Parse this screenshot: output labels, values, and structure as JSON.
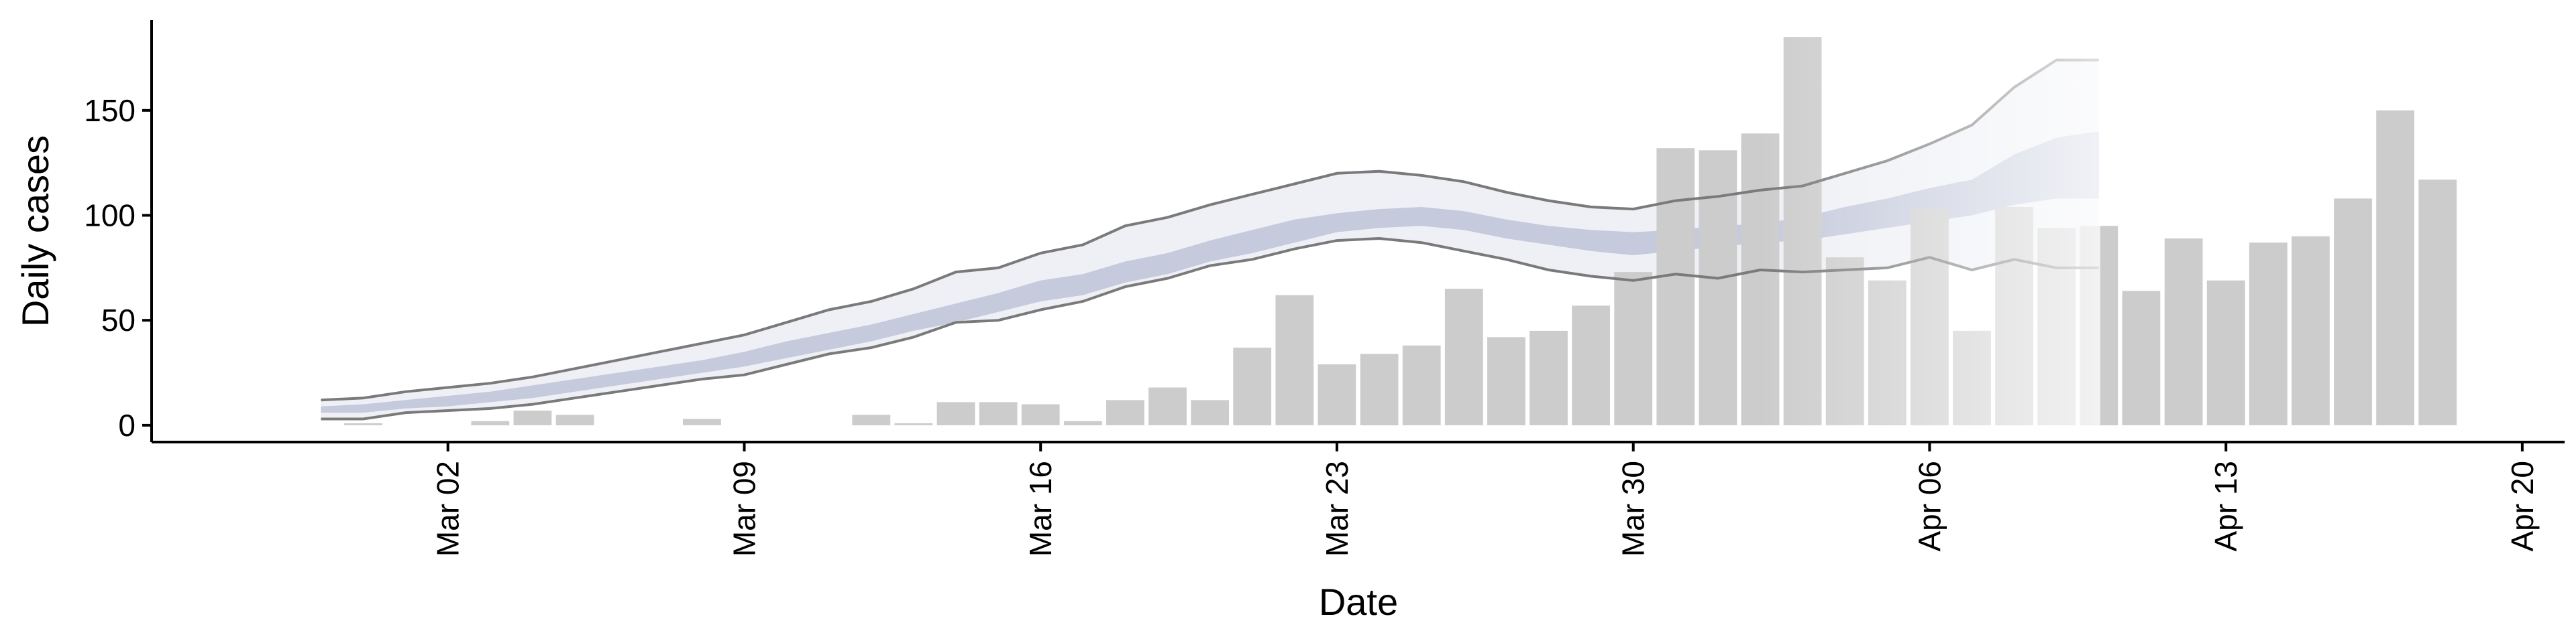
{
  "chart_data": {
    "type": "bar",
    "title": "",
    "xlabel": "Date",
    "ylabel": "Daily cases",
    "ylim": [
      -8,
      193
    ],
    "xlim": [
      "2020-02-24",
      "2020-04-21"
    ],
    "x_ticks": [
      "Mar 02",
      "Mar 09",
      "Mar 16",
      "Mar 23",
      "Mar 30",
      "Apr 06",
      "Apr 13",
      "Apr 20"
    ],
    "y_ticks": [
      "0",
      "50",
      "100",
      "150"
    ],
    "grid": false,
    "legend": "none",
    "colors": {
      "bars": "#cccccc",
      "band_outer": "#eef0f5",
      "band_inner": "#c5cadc",
      "bound_lines": "#7a7a7a"
    },
    "series": [
      {
        "kind": "bar",
        "dates": [
          "2020-02-29",
          "2020-03-01",
          "2020-03-02",
          "2020-03-03",
          "2020-03-04",
          "2020-03-05",
          "2020-03-06",
          "2020-03-07",
          "2020-03-08",
          "2020-03-09",
          "2020-03-10",
          "2020-03-11",
          "2020-03-12",
          "2020-03-13",
          "2020-03-14",
          "2020-03-15",
          "2020-03-16",
          "2020-03-17",
          "2020-03-18",
          "2020-03-19",
          "2020-03-20",
          "2020-03-21",
          "2020-03-22",
          "2020-03-23",
          "2020-03-24",
          "2020-03-25",
          "2020-03-26",
          "2020-03-27",
          "2020-03-28",
          "2020-03-29",
          "2020-03-30",
          "2020-03-31",
          "2020-04-01",
          "2020-04-02",
          "2020-04-03",
          "2020-04-04",
          "2020-04-05",
          "2020-04-06",
          "2020-04-07",
          "2020-04-08",
          "2020-04-09",
          "2020-04-10",
          "2020-04-11",
          "2020-04-12",
          "2020-04-13",
          "2020-04-14",
          "2020-04-15",
          "2020-04-16",
          "2020-04-17",
          "2020-04-18",
          "2020-04-19"
        ],
        "values": [
          1,
          0,
          0,
          2,
          7,
          5,
          0,
          0,
          3,
          0,
          0,
          0,
          5,
          1,
          11,
          11,
          10,
          2,
          12,
          18,
          12,
          37,
          62,
          29,
          34,
          38,
          65,
          42,
          45,
          57,
          73,
          132,
          131,
          139,
          185,
          80,
          69,
          103,
          45,
          104,
          94,
          95,
          64,
          89,
          69,
          87,
          90,
          108,
          150,
          117,
          0
        ]
      },
      {
        "kind": "band",
        "dates": [
          "2020-02-28",
          "2020-02-29",
          "2020-03-01",
          "2020-03-02",
          "2020-03-03",
          "2020-03-04",
          "2020-03-05",
          "2020-03-06",
          "2020-03-07",
          "2020-03-08",
          "2020-03-09",
          "2020-03-10",
          "2020-03-11",
          "2020-03-12",
          "2020-03-13",
          "2020-03-14",
          "2020-03-15",
          "2020-03-16",
          "2020-03-17",
          "2020-03-18",
          "2020-03-19",
          "2020-03-20",
          "2020-03-21",
          "2020-03-22",
          "2020-03-23",
          "2020-03-24",
          "2020-03-25",
          "2020-03-26",
          "2020-03-27",
          "2020-03-28",
          "2020-03-29",
          "2020-03-30",
          "2020-03-31",
          "2020-04-01",
          "2020-04-02",
          "2020-04-03",
          "2020-04-04",
          "2020-04-05",
          "2020-04-06",
          "2020-04-07",
          "2020-04-08",
          "2020-04-09",
          "2020-04-10"
        ],
        "upper": [
          12,
          13,
          16,
          18,
          20,
          23,
          27,
          31,
          35,
          39,
          43,
          49,
          55,
          59,
          65,
          73,
          75,
          82,
          86,
          95,
          99,
          105,
          110,
          115,
          120,
          121,
          119,
          116,
          111,
          107,
          104,
          103,
          107,
          109,
          112,
          114,
          120,
          126,
          134,
          143,
          161,
          174,
          174
        ],
        "upper_inner": [
          9,
          10,
          12,
          14,
          16,
          19,
          22,
          25,
          28,
          31,
          35,
          40,
          44,
          48,
          53,
          58,
          63,
          69,
          72,
          78,
          82,
          88,
          93,
          98,
          101,
          103,
          104,
          102,
          98,
          95,
          93,
          92,
          93,
          95,
          96,
          99,
          104,
          108,
          113,
          117,
          129,
          137,
          140
        ],
        "lower_inner": [
          6,
          6,
          8,
          9,
          11,
          13,
          16,
          19,
          22,
          25,
          28,
          32,
          36,
          40,
          45,
          49,
          54,
          59,
          62,
          68,
          72,
          78,
          82,
          87,
          92,
          94,
          95,
          93,
          89,
          86,
          83,
          81,
          83,
          85,
          87,
          88,
          91,
          94,
          97,
          100,
          105,
          108,
          108
        ],
        "lower": [
          3,
          3,
          6,
          7,
          8,
          10,
          13,
          16,
          19,
          22,
          24,
          29,
          34,
          37,
          42,
          49,
          50,
          55,
          59,
          66,
          70,
          76,
          79,
          84,
          88,
          89,
          87,
          83,
          79,
          74,
          71,
          69,
          72,
          70,
          74,
          73,
          74,
          75,
          80,
          74,
          79,
          75,
          75
        ]
      }
    ]
  }
}
